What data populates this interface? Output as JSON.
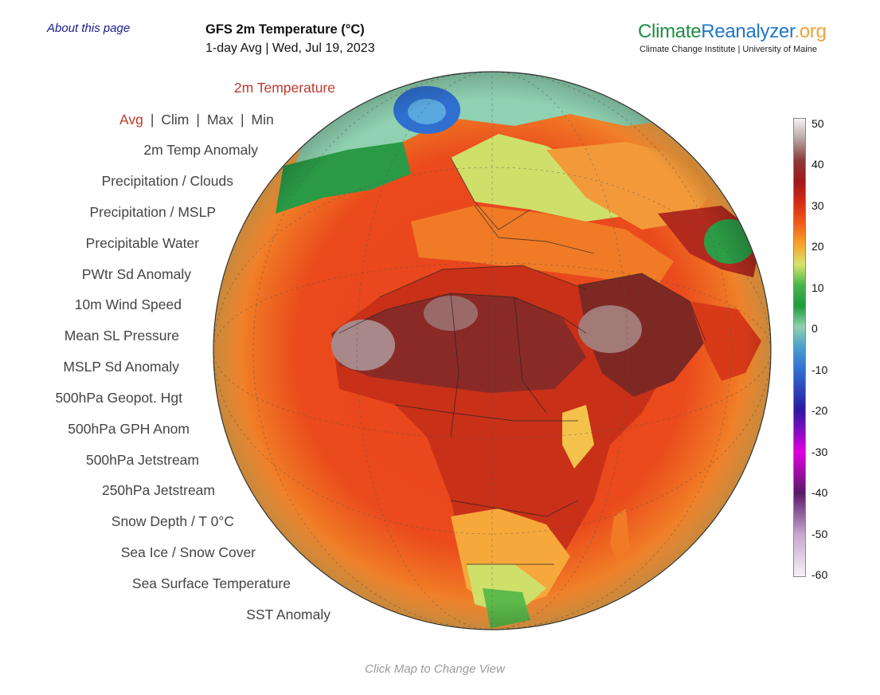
{
  "header": {
    "about_link": "About this page",
    "title": "GFS 2m Temperature (°C)",
    "subtitle": "1-day Avg | Wed, Jul 19, 2023",
    "brand_part1": "Climate",
    "brand_part2": "Reanalyzer",
    "brand_part3": ".org",
    "brand_sub": "Climate Change Institute | University of Maine"
  },
  "menu": {
    "items": [
      "2m Temperature",
      "2m Temp Anomaly",
      "Precipitation / Clouds",
      "Precipitation / MSLP",
      "Precipitable Water",
      "PWtr Sd Anomaly",
      "10m Wind Speed",
      "Mean SL Pressure",
      "MSLP Sd Anomaly",
      "500hPa Geopot. Hgt",
      "500hPa GPH Anom",
      "500hPa Jetstream",
      "250hPa Jetstream",
      "Snow Depth / T 0°C",
      "Sea Ice / Snow Cover",
      "Sea Surface Temperature",
      "SST Anomaly"
    ],
    "active": "2m Temperature",
    "stats": [
      "Avg",
      "Clim",
      "Max",
      "Min"
    ],
    "stats_selected": "Avg"
  },
  "colorbar": {
    "labels": [
      "50",
      "40",
      "30",
      "20",
      "10",
      "0",
      "-10",
      "-20",
      "-30",
      "-40",
      "-50",
      "-60"
    ],
    "colors": {
      "50": "#f4f4f4",
      "45": "#b8a2a2",
      "40": "#8a3a3a",
      "35": "#a01818",
      "30": "#d42a15",
      "25": "#f05a1a",
      "20": "#f7a02a",
      "15": "#d8e36a",
      "10": "#48b64a",
      "5": "#1d9a3e",
      "0": "#8fd1b0",
      "-5": "#4a9fcf",
      "-10": "#3272d0",
      "-20": "#2a1aa0",
      "-30": "#e000e0",
      "-40": "#5a1a6a",
      "-50": "#c7a7cf",
      "-60": "#f6f0f8"
    }
  },
  "footer": {
    "hint": "Click Map to Change View"
  }
}
